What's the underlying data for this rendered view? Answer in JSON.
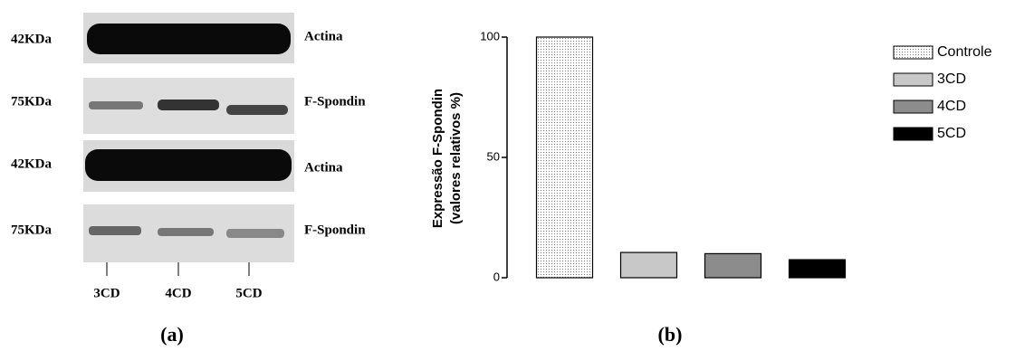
{
  "blot": {
    "rows": [
      {
        "size": "42KDa",
        "label": "Actina"
      },
      {
        "size": "75KDa",
        "label": "F-Spondin"
      },
      {
        "size": "42KDa",
        "label": "Actina"
      },
      {
        "size": "75KDa",
        "label": "F-Spondin"
      }
    ],
    "lanes": [
      "3CD",
      "4CD",
      "5CD"
    ],
    "caption": "(a)"
  },
  "chart_data": {
    "type": "bar",
    "ylabel": [
      "Expressão F-Spondin",
      "(valores relativos %)"
    ],
    "categories": [
      "Controle",
      "3CD",
      "4CD",
      "5CD"
    ],
    "values": [
      100,
      10.5,
      10,
      7.5
    ],
    "colors": [
      "#f2f2f2",
      "#c8c8c8",
      "#8c8c8c",
      "#000000"
    ],
    "ylim": [
      0,
      100
    ],
    "yticks": [
      0,
      50,
      100
    ],
    "legend": "right",
    "caption": "(b)"
  }
}
